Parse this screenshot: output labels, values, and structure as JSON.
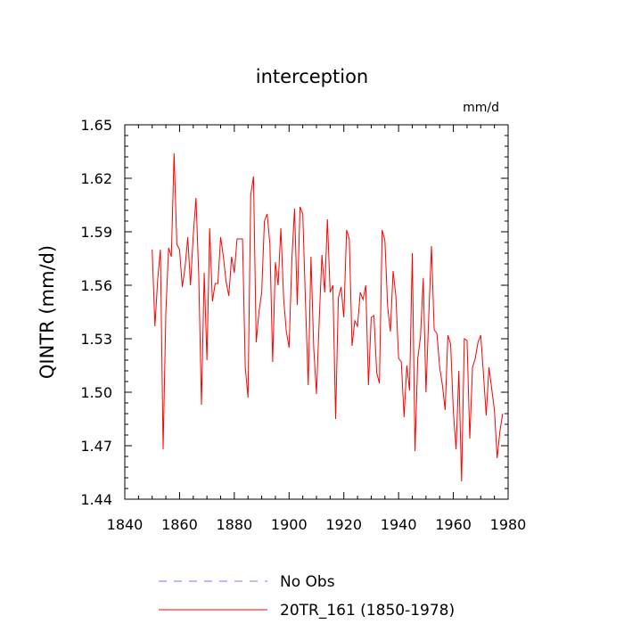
{
  "chart_data": {
    "type": "line",
    "title": "interception",
    "units": "mm/d",
    "ylabel": "QINTR  (mm/d)",
    "xlabel": "",
    "xlim": [
      1840,
      1980
    ],
    "ylim": [
      1.44,
      1.65
    ],
    "xticks": [
      1840,
      1860,
      1880,
      1900,
      1920,
      1940,
      1960,
      1980
    ],
    "yticks": [
      1.44,
      1.47,
      1.5,
      1.53,
      1.56,
      1.59,
      1.62,
      1.65
    ],
    "ytick_labels": [
      "1.44",
      "1.47",
      "1.50",
      "1.53",
      "1.56",
      "1.59",
      "1.62",
      "1.65"
    ],
    "series": [
      {
        "name": "20TR_161 (1850-1978)",
        "color": "#ff0000",
        "x_start": 1850,
        "values": [
          1.58,
          1.537,
          1.563,
          1.58,
          1.468,
          1.545,
          1.581,
          1.576,
          1.634,
          1.583,
          1.58,
          1.559,
          1.57,
          1.587,
          1.56,
          1.588,
          1.609,
          1.566,
          1.493,
          1.567,
          1.518,
          1.592,
          1.551,
          1.561,
          1.561,
          1.587,
          1.576,
          1.562,
          1.554,
          1.576,
          1.567,
          1.586,
          1.586,
          1.586,
          1.514,
          1.497,
          1.611,
          1.621,
          1.528,
          1.545,
          1.556,
          1.596,
          1.6,
          1.583,
          1.517,
          1.573,
          1.56,
          1.592,
          1.553,
          1.534,
          1.525,
          1.574,
          1.603,
          1.549,
          1.604,
          1.6,
          1.55,
          1.504,
          1.576,
          1.525,
          1.499,
          1.54,
          1.577,
          1.556,
          1.597,
          1.556,
          1.56,
          1.485,
          1.553,
          1.559,
          1.542,
          1.591,
          1.586,
          1.526,
          1.54,
          1.537,
          1.556,
          1.552,
          1.56,
          1.504,
          1.542,
          1.543,
          1.511,
          1.505,
          1.591,
          1.585,
          1.548,
          1.534,
          1.568,
          1.554,
          1.519,
          1.517,
          1.486,
          1.515,
          1.501,
          1.578,
          1.467,
          1.519,
          1.531,
          1.564,
          1.5,
          1.542,
          1.582,
          1.535,
          1.533,
          1.514,
          1.504,
          1.49,
          1.532,
          1.527,
          1.489,
          1.468,
          1.512,
          1.45,
          1.53,
          1.529,
          1.474,
          1.514,
          1.519,
          1.528,
          1.532,
          1.51,
          1.487,
          1.514,
          1.502,
          1.49,
          1.463,
          1.478,
          1.488
        ]
      }
    ],
    "legend": [
      {
        "label": "No Obs",
        "color": "#7777ff",
        "style": "dashed"
      },
      {
        "label": "20TR_161 (1850-1978)",
        "color": "#ff0000",
        "style": "solid"
      }
    ]
  }
}
